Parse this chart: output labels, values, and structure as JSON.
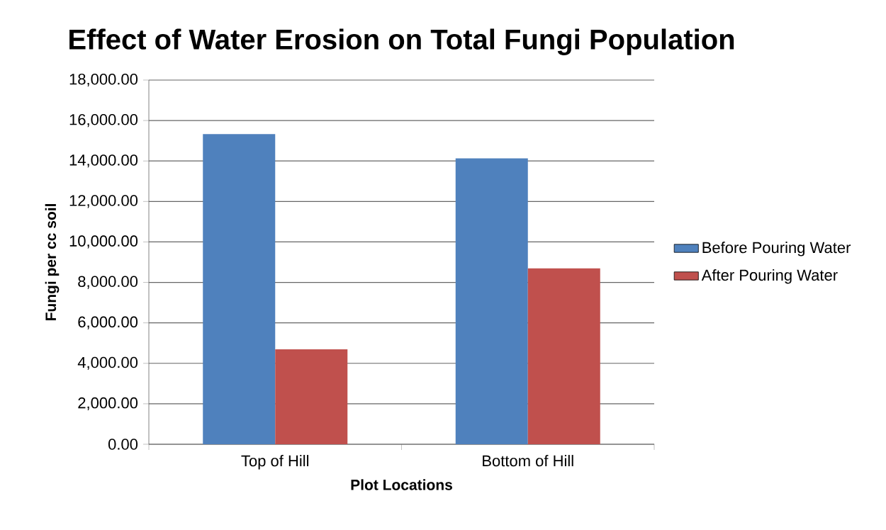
{
  "chart_data": {
    "type": "bar",
    "title": "Effect of Water Erosion on Total Fungi Population",
    "xlabel": "Plot Locations",
    "ylabel": "Fungi per cc soil",
    "categories": [
      "Top of Hill",
      "Bottom of Hill"
    ],
    "series": [
      {
        "name": "Before Pouring Water",
        "color": "#4f81bd",
        "values": [
          15330,
          14130
        ]
      },
      {
        "name": "After Pouring Water",
        "color": "#c0504d",
        "values": [
          4690,
          8690
        ]
      }
    ],
    "ylim": [
      0,
      18000
    ],
    "yticks": [
      {
        "value": 0,
        "label": "0.00"
      },
      {
        "value": 2000,
        "label": "2,000.00"
      },
      {
        "value": 4000,
        "label": "4,000.00"
      },
      {
        "value": 6000,
        "label": "6,000.00"
      },
      {
        "value": 8000,
        "label": "8,000.00"
      },
      {
        "value": 10000,
        "label": "10,000.00"
      },
      {
        "value": 12000,
        "label": "12,000.00"
      },
      {
        "value": 14000,
        "label": "14,000.00"
      },
      {
        "value": 16000,
        "label": "16,000.00"
      },
      {
        "value": 18000,
        "label": "18,000.00"
      }
    ],
    "grid": "y",
    "legend": "right"
  }
}
